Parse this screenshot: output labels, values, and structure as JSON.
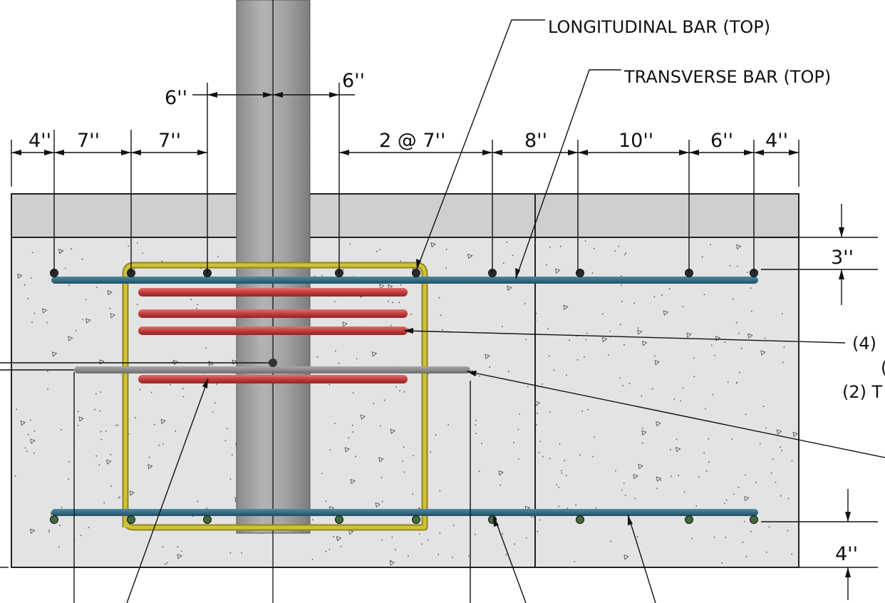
{
  "callouts": {
    "longitudinal_top": "LONGITUDINAL BAR (TOP)",
    "transverse_top": "TRANSVERSE BAR (TOP)",
    "right_cut_1": "(4)",
    "right_cut_2": "(",
    "right_cut_3": "(2) T"
  },
  "dimensions": {
    "pole_left": "6''",
    "pole_right": "6''",
    "d1": "4''",
    "d2": "7''",
    "d3": "7''",
    "d4": "2 @ 7''",
    "d5": "8''",
    "d6": "10''",
    "d7": "6''",
    "d8": "4''",
    "cover_top": "3''",
    "cover_bottom": "4''"
  },
  "colors": {
    "concrete": "#e3e3e3",
    "pavement": "#cfcfcf",
    "pole": "#9c9c9c",
    "blue_bar": "#2e6b85",
    "yellow_bar": "#c9bd33",
    "red_bar": "#c43c3c",
    "gray_bar": "#8c8c8c"
  }
}
